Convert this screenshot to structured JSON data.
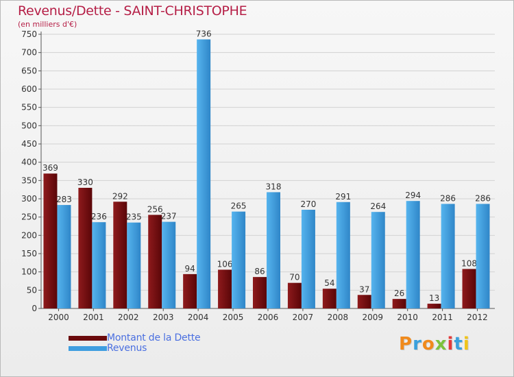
{
  "header": {
    "title": "Revenus/Dette - SAINT-CHRISTOPHE",
    "subtitle": "(en milliers d'€)"
  },
  "chart_data": {
    "type": "bar",
    "title": "Revenus/Dette - SAINT-CHRISTOPHE",
    "ylabel": "(en milliers d'€)",
    "xlabel": "",
    "ylim": [
      0,
      750
    ],
    "ytick_step": 50,
    "grid": true,
    "categories": [
      "2000",
      "2001",
      "2002",
      "2003",
      "2004",
      "2005",
      "2006",
      "2007",
      "2008",
      "2009",
      "2010",
      "2011",
      "2012"
    ],
    "series": [
      {
        "name": "Montant de la Dette",
        "color": "#7a0e10",
        "values": [
          369,
          330,
          292,
          256,
          94,
          106,
          86,
          70,
          54,
          37,
          26,
          13,
          108
        ]
      },
      {
        "name": "Revenus",
        "color": "#3f9ee0",
        "values": [
          283,
          236,
          235,
          237,
          736,
          265,
          318,
          270,
          291,
          264,
          294,
          286,
          286
        ]
      }
    ]
  },
  "legend": {
    "items": [
      {
        "label": "Montant de la Dette",
        "color": "#6b0a0c"
      },
      {
        "label": "Revenus",
        "color": "#3f9ee0"
      }
    ]
  },
  "logo": {
    "letters": [
      "P",
      "r",
      "o",
      "x",
      "i",
      "t",
      "i"
    ],
    "colors": [
      "#f08a1c",
      "#3aa0dc",
      "#f08a1c",
      "#7cc23c",
      "#e23a3a",
      "#3aa0dc",
      "#f0c419"
    ]
  }
}
